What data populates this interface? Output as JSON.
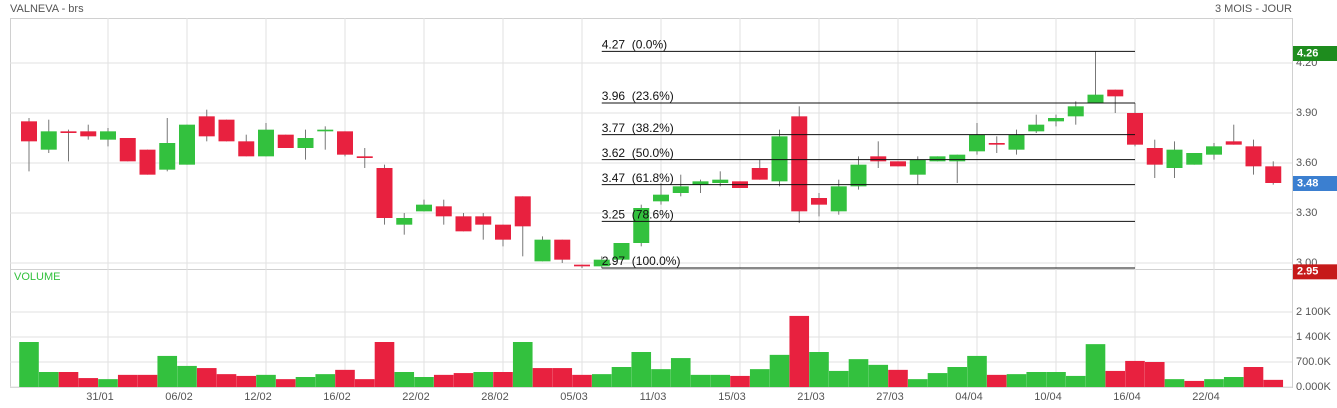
{
  "chart_data": {
    "type": "candlestick",
    "title": "VALNEVA - brs",
    "subtitle": "3 MOIS - JOUR",
    "up_color": "#33c13e",
    "down_color": "#e8213f",
    "grid": true,
    "categories": [
      null,
      null,
      null,
      null,
      "31/01",
      null,
      null,
      null,
      "06/02",
      null,
      null,
      null,
      "12/02",
      null,
      null,
      null,
      "16/02",
      null,
      null,
      null,
      "22/02",
      null,
      null,
      null,
      "28/02",
      null,
      null,
      null,
      "05/03",
      null,
      null,
      null,
      "11/03",
      null,
      null,
      null,
      "15/03",
      null,
      null,
      null,
      "21/03",
      null,
      null,
      null,
      "27/03",
      null,
      null,
      null,
      "04/04",
      null,
      null,
      null,
      "10/04",
      null,
      null,
      null,
      "16/04",
      null,
      null,
      null,
      "22/04",
      null,
      null,
      null
    ],
    "open": [
      3.85,
      3.68,
      3.79,
      3.79,
      3.74,
      3.75,
      3.68,
      3.56,
      3.59,
      3.88,
      3.86,
      3.73,
      3.64,
      3.77,
      3.69,
      3.79,
      3.79,
      3.64,
      3.57,
      3.23,
      3.31,
      3.34,
      3.28,
      3.28,
      3.23,
      3.4,
      3.01,
      3.14,
      2.99,
      2.98,
      3.02,
      3.12,
      3.37,
      3.42,
      3.47,
      3.48,
      3.49,
      3.57,
      3.49,
      3.88,
      3.39,
      3.31,
      3.46,
      3.64,
      3.61,
      3.53,
      3.61,
      3.61,
      3.67,
      3.72,
      3.68,
      3.79,
      3.85,
      3.88,
      3.96,
      4.04,
      3.9,
      3.69,
      3.57,
      3.59,
      3.65,
      3.73,
      3.7,
      3.58
    ],
    "high": [
      3.87,
      3.86,
      3.8,
      3.83,
      3.81,
      3.75,
      3.68,
      3.87,
      3.83,
      3.92,
      3.86,
      3.77,
      3.84,
      3.77,
      3.8,
      3.82,
      3.79,
      3.69,
      3.59,
      3.3,
      3.38,
      3.38,
      3.3,
      3.3,
      3.23,
      3.4,
      3.16,
      3.14,
      2.99,
      3.04,
      3.12,
      3.35,
      3.48,
      3.53,
      3.5,
      3.55,
      3.49,
      3.62,
      3.8,
      3.94,
      3.42,
      3.5,
      3.64,
      3.73,
      3.61,
      3.64,
      3.64,
      3.65,
      3.84,
      3.76,
      3.8,
      3.89,
      3.89,
      3.97,
      4.27,
      4.04,
      3.96,
      3.74,
      3.73,
      3.66,
      3.72,
      3.83,
      3.74,
      3.61
    ],
    "low": [
      3.55,
      3.66,
      3.61,
      3.74,
      3.7,
      3.61,
      3.53,
      3.55,
      3.59,
      3.73,
      3.73,
      3.64,
      3.64,
      3.69,
      3.62,
      3.68,
      3.64,
      3.57,
      3.23,
      3.17,
      3.31,
      3.23,
      3.19,
      3.14,
      3.1,
      3.04,
      3.01,
      3.0,
      2.97,
      2.97,
      3.02,
      3.1,
      3.35,
      3.4,
      3.42,
      3.46,
      3.45,
      3.5,
      3.46,
      3.24,
      3.28,
      3.29,
      3.44,
      3.57,
      3.58,
      3.47,
      3.61,
      3.48,
      3.65,
      3.66,
      3.65,
      3.78,
      3.82,
      3.83,
      3.96,
      3.9,
      3.7,
      3.51,
      3.51,
      3.59,
      3.62,
      3.71,
      3.53,
      3.47
    ],
    "close": [
      3.73,
      3.79,
      3.78,
      3.76,
      3.79,
      3.61,
      3.53,
      3.72,
      3.83,
      3.76,
      3.73,
      3.64,
      3.8,
      3.69,
      3.75,
      3.8,
      3.65,
      3.63,
      3.27,
      3.27,
      3.35,
      3.28,
      3.19,
      3.23,
      3.14,
      3.22,
      3.14,
      3.02,
      2.98,
      3.02,
      3.12,
      3.33,
      3.41,
      3.46,
      3.49,
      3.5,
      3.45,
      3.5,
      3.76,
      3.31,
      3.35,
      3.46,
      3.59,
      3.61,
      3.58,
      3.62,
      3.64,
      3.65,
      3.77,
      3.71,
      3.77,
      3.83,
      3.87,
      3.94,
      4.01,
      4.0,
      3.71,
      3.59,
      3.68,
      3.66,
      3.7,
      3.71,
      3.58,
      3.48
    ],
    "ylim": [
      2.958,
      4.47
    ],
    "yticks": [
      {
        "value": 3.0,
        "label": "3.00"
      },
      {
        "value": 3.3,
        "label": "3.30"
      },
      {
        "value": 3.6,
        "label": "3.60"
      },
      {
        "value": 3.9,
        "label": "3.90"
      },
      {
        "value": 4.2,
        "label": "4.20"
      }
    ],
    "price_markers": [
      {
        "value": 4.26,
        "label": "4.26",
        "color": "#1e8c1e"
      },
      {
        "value": 3.48,
        "label": "3.48",
        "color": "#3b7fd0"
      },
      {
        "value": 2.95,
        "label": "2.95",
        "color": "#c61a1a"
      }
    ],
    "fibonacci": [
      {
        "value": 4.27,
        "label": "4.27  (0.0%)"
      },
      {
        "value": 3.96,
        "label": "3.96  (23.6%)"
      },
      {
        "value": 3.77,
        "label": "3.77  (38.2%)"
      },
      {
        "value": 3.62,
        "label": "3.62  (50.0%)"
      },
      {
        "value": 3.47,
        "label": "3.47  (61.8%)"
      },
      {
        "value": 3.25,
        "label": "3.25  (78.6%)"
      },
      {
        "value": 2.97,
        "label": "2.97  (100.0%)"
      }
    ],
    "volume": {
      "label": "VOLUME",
      "values": [
        1260,
        420,
        420,
        250,
        220,
        340,
        340,
        870,
        590,
        530,
        360,
        310,
        340,
        220,
        280,
        360,
        480,
        220,
        1260,
        420,
        280,
        340,
        390,
        420,
        420,
        1260,
        530,
        530,
        340,
        360,
        560,
        980,
        500,
        810,
        340,
        340,
        310,
        500,
        900,
        1990,
        980,
        450,
        780,
        620,
        480,
        220,
        390,
        560,
        870,
        340,
        360,
        420,
        420,
        310,
        1200,
        450,
        730,
        700,
        220,
        170,
        220,
        280,
        560,
        200
      ],
      "ylim": [
        0,
        3276
      ],
      "yticks": [
        {
          "value": 0,
          "label": "0.000K"
        },
        {
          "value": 700,
          "label": "700.0K"
        },
        {
          "value": 1400,
          "label": "1 400K"
        },
        {
          "value": 2100,
          "label": "2 100K"
        }
      ]
    }
  }
}
